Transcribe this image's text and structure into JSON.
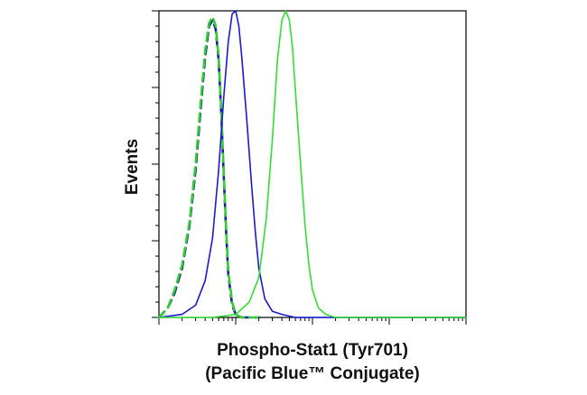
{
  "chart_data": {
    "type": "line",
    "title": "",
    "xlabel_lines": [
      "Phospho-Stat1 (Tyr701)",
      "(Pacific Blue™ Conjugate)"
    ],
    "ylabel": "Events",
    "x_scale": "log",
    "xlim": [
      0.1,
      1000
    ],
    "ylim": [
      0,
      100
    ],
    "grid": false,
    "legend": "none",
    "tick_labels_shown": false,
    "series": [
      {
        "style": "dashed",
        "color": "#1a1aa6",
        "x": [
          0.1,
          0.13,
          0.16,
          0.2,
          0.25,
          0.3,
          0.35,
          0.4,
          0.45,
          0.5,
          0.55,
          0.6,
          0.65,
          0.7,
          0.75,
          0.8,
          0.9,
          1.0,
          1.2,
          1.5,
          2.0
        ],
        "y": [
          0,
          3,
          8,
          16,
          30,
          48,
          68,
          85,
          95,
          97,
          94,
          84,
          66,
          46,
          28,
          14,
          4,
          1,
          0,
          0,
          0
        ]
      },
      {
        "style": "dashed",
        "color": "#33cc33",
        "x": [
          0.1,
          0.13,
          0.16,
          0.2,
          0.25,
          0.3,
          0.35,
          0.4,
          0.45,
          0.5,
          0.55,
          0.6,
          0.65,
          0.7,
          0.75,
          0.8,
          0.9,
          1.0,
          1.2,
          1.5,
          2.0
        ],
        "y": [
          0,
          3,
          9,
          17,
          31,
          50,
          70,
          87,
          96,
          98,
          95,
          85,
          67,
          47,
          29,
          15,
          5,
          1,
          0,
          0,
          0
        ]
      },
      {
        "style": "solid",
        "color": "#1a1ad6",
        "x": [
          0.1,
          0.2,
          0.3,
          0.4,
          0.5,
          0.6,
          0.7,
          0.8,
          0.9,
          1.0,
          1.1,
          1.2,
          1.4,
          1.6,
          1.8,
          2.0,
          2.4,
          3.0,
          4.0,
          6.0,
          10.0,
          1000
        ],
        "y": [
          0,
          1,
          4,
          12,
          26,
          48,
          72,
          90,
          99,
          100,
          95,
          85,
          64,
          44,
          28,
          16,
          6,
          2,
          1,
          0,
          0,
          0
        ]
      },
      {
        "style": "solid",
        "color": "#33dd33",
        "x": [
          0.1,
          0.5,
          1.0,
          1.5,
          2.0,
          2.5,
          3.0,
          3.5,
          4.0,
          4.5,
          5.0,
          5.5,
          6.0,
          7.0,
          8.0,
          9.0,
          10.0,
          12.0,
          15.0,
          20.0,
          30.0,
          1000
        ],
        "y": [
          0,
          0,
          1,
          5,
          13,
          32,
          58,
          84,
          97,
          100,
          97,
          88,
          74,
          50,
          30,
          17,
          9,
          3,
          1,
          0,
          0,
          0
        ]
      }
    ]
  }
}
